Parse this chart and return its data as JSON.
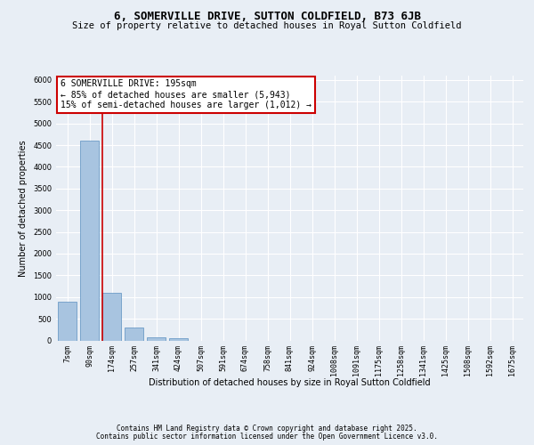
{
  "title": "6, SOMERVILLE DRIVE, SUTTON COLDFIELD, B73 6JB",
  "subtitle": "Size of property relative to detached houses in Royal Sutton Coldfield",
  "xlabel": "Distribution of detached houses by size in Royal Sutton Coldfield",
  "ylabel": "Number of detached properties",
  "categories": [
    "7sqm",
    "90sqm",
    "174sqm",
    "257sqm",
    "341sqm",
    "424sqm",
    "507sqm",
    "591sqm",
    "674sqm",
    "758sqm",
    "841sqm",
    "924sqm",
    "1008sqm",
    "1091sqm",
    "1175sqm",
    "1258sqm",
    "1341sqm",
    "1425sqm",
    "1508sqm",
    "1592sqm",
    "1675sqm"
  ],
  "values": [
    900,
    4600,
    1090,
    290,
    75,
    55,
    0,
    0,
    0,
    0,
    0,
    0,
    0,
    0,
    0,
    0,
    0,
    0,
    0,
    0,
    0
  ],
  "bar_color": "#a8c4e0",
  "bar_edge_color": "#5a90c0",
  "background_color": "#e8eef5",
  "grid_color": "#ffffff",
  "vline_position": 2.0,
  "vline_color": "#cc0000",
  "annotation_text": "6 SOMERVILLE DRIVE: 195sqm\n← 85% of detached houses are smaller (5,943)\n15% of semi-detached houses are larger (1,012) →",
  "annotation_box_color": "#ffffff",
  "annotation_box_edge": "#cc0000",
  "ylim": [
    0,
    6100
  ],
  "yticks": [
    0,
    500,
    1000,
    1500,
    2000,
    2500,
    3000,
    3500,
    4000,
    4500,
    5000,
    5500,
    6000
  ],
  "footer_line1": "Contains HM Land Registry data © Crown copyright and database right 2025.",
  "footer_line2": "Contains public sector information licensed under the Open Government Licence v3.0.",
  "title_fontsize": 9,
  "subtitle_fontsize": 7.5,
  "tick_fontsize": 6,
  "label_fontsize": 7,
  "annot_fontsize": 7,
  "footer_fontsize": 5.5
}
